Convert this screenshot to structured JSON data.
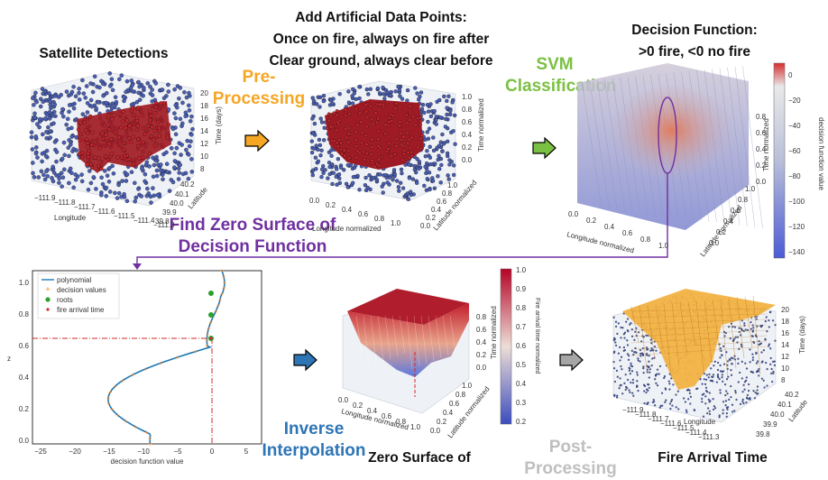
{
  "titles": {
    "satellite": "Satellite Detections",
    "add_points": [
      "Add Artificial Data Points:",
      "Once on fire, always on fire after",
      "Clear ground, always clear before"
    ],
    "decision": [
      "Decision Function:",
      ">0 fire, <0 no fire"
    ],
    "zero_surface": "Zero Surface of",
    "fire_arrival": "Fire Arrival Time"
  },
  "steps": {
    "preprocessing": "Pre-Processing",
    "svm": [
      "SVM",
      "Classification"
    ],
    "zero_find": [
      "Find Zero Surface of",
      "Decision Function"
    ],
    "inverse": [
      "Inverse",
      "Interpolation"
    ],
    "postprocessing": "Post-Processing"
  },
  "colors": {
    "preprocessing": "#f5a623",
    "svm": "#7ac143",
    "zero_find": "#7030a0",
    "inverse": "#2e75b6",
    "postprocessing": "#bfbfbf"
  },
  "plot1": {
    "ticks_z": [
      "20",
      "18",
      "16",
      "14",
      "12",
      "10",
      "8"
    ],
    "zlabel": "Time (days)",
    "ticks_x": [
      "−111.9",
      "−111.8",
      "−111.7",
      "−111.6",
      "−111.5",
      "−111.4",
      "−111.3"
    ],
    "xlabel": "Longitude",
    "ticks_y": [
      "40.2",
      "40.1",
      "40.0",
      "39.9",
      "39.8"
    ],
    "ylabel": "Latitude"
  },
  "plot2": {
    "ticks_z": [
      "1.0",
      "0.8",
      "0.6",
      "0.4",
      "0.2",
      "0.0"
    ],
    "zlabel": "Time normalized",
    "ticks_x": [
      "0.0",
      "0.2",
      "0.4",
      "0.6",
      "0.8",
      "1.0"
    ],
    "xlabel": "Longitude normalized",
    "ticks_y": [
      "1.0",
      "0.8",
      "0.6",
      "0.4",
      "0.2",
      "0.0"
    ],
    "ylabel": "Latitude normalized"
  },
  "plot3": {
    "ticks_z": [
      "0.8",
      "0.6",
      "0.4",
      "0.2",
      "0.0"
    ],
    "zlabel": "Time normalized",
    "ticks_x": [
      "0.0",
      "0.2",
      "0.4",
      "0.6",
      "0.8",
      "1.0"
    ],
    "xlabel": "Longitude normalized",
    "ticks_y": [
      "1.0",
      "0.8",
      "0.6",
      "0.4",
      "0.2",
      "0.0"
    ],
    "ylabel": "Latitude normalized",
    "colorbar_ticks": [
      "0",
      "−20",
      "−40",
      "−60",
      "−80",
      "−100",
      "−120",
      "−140"
    ],
    "colorbar_label": "decision function value"
  },
  "plot4": {
    "legend": [
      "polynomial",
      "decision values",
      "roots",
      "fire arrival time"
    ],
    "ticks_y": [
      "1.0",
      "0.8",
      "0.6",
      "0.4",
      "0.2",
      "0.0"
    ],
    "ylabel": "z",
    "ticks_x": [
      "−25",
      "−20",
      "−15",
      "−10",
      "−5",
      "0",
      "5"
    ],
    "xlabel": "decision function value"
  },
  "plot5": {
    "ticks_z": [
      "0.8",
      "0.6",
      "0.4",
      "0.2",
      "0.0"
    ],
    "zlabel": "Time normalized",
    "ticks_x": [
      "0.0",
      "0.2",
      "0.4",
      "0.6",
      "0.8",
      "1.0"
    ],
    "xlabel": "Longitude normalized",
    "ticks_y": [
      "1.0",
      "0.8",
      "0.6",
      "0.4",
      "0.2",
      "0.0"
    ],
    "ylabel": "Latitude normalized",
    "colorbar_ticks": [
      "1.0",
      "0.9",
      "0.8",
      "0.7",
      "0.6",
      "0.5",
      "0.4",
      "0.3",
      "0.2"
    ],
    "colorbar_label": "Fire arrival time normalized"
  },
  "plot6": {
    "ticks_z": [
      "20",
      "18",
      "16",
      "14",
      "12",
      "10",
      "8"
    ],
    "zlabel": "Time (days)",
    "ticks_x": [
      "−111.9",
      "−111.8",
      "−111.7",
      "−111.6",
      "−111.5",
      "−111.4",
      "−111.3"
    ],
    "xlabel": "Longitude",
    "ticks_y": [
      "40.2",
      "40.1",
      "40.0",
      "39.9",
      "39.8"
    ],
    "ylabel": "Latitude"
  }
}
